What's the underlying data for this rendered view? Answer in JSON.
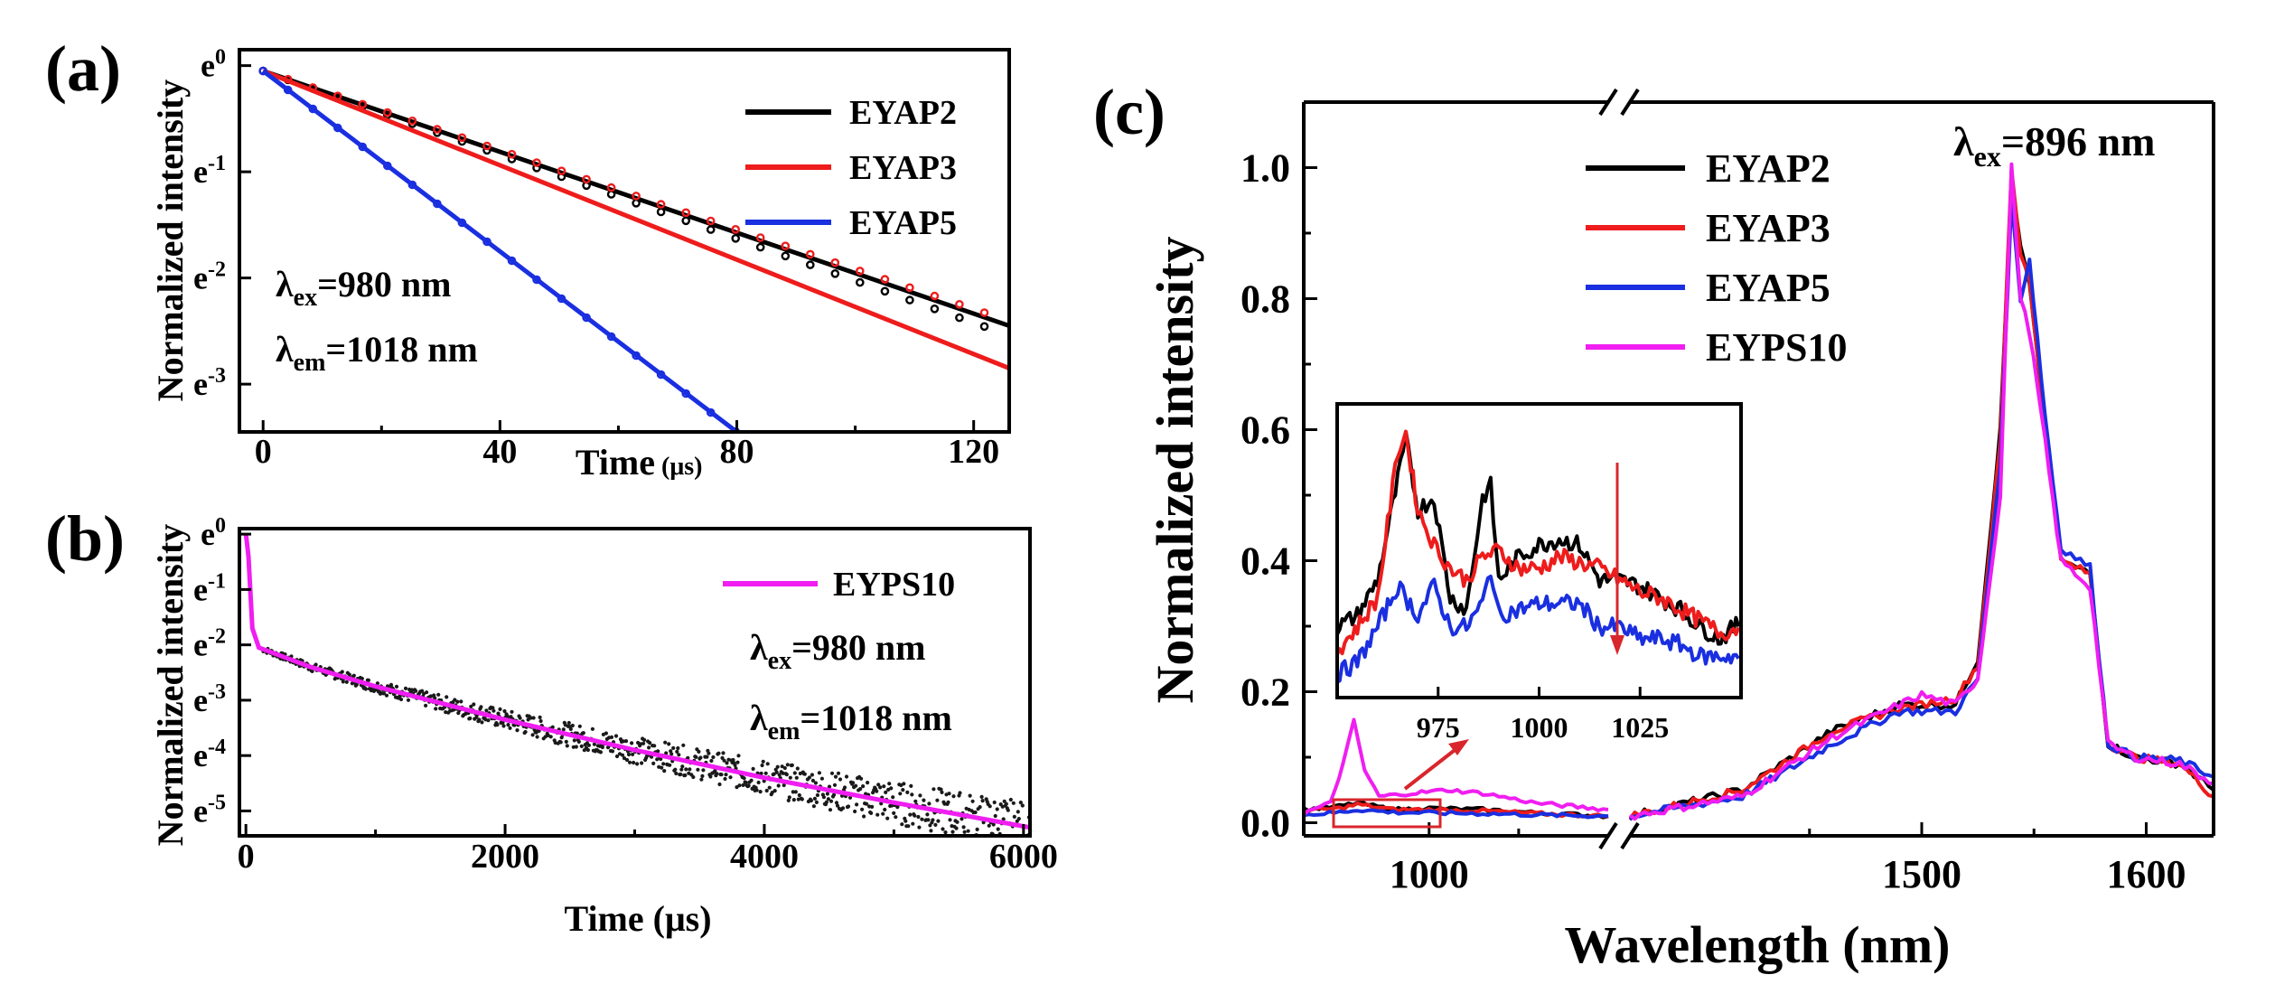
{
  "panels": {
    "a": "(a)",
    "b": "(b)",
    "c": "(c)"
  },
  "colors": {
    "EYAP2": "#000000",
    "EYAP3": "#ee1c1c",
    "EYAP5": "#1a2fe0",
    "EYPS10": "#f01ef0",
    "inset_box": "#d8262c"
  },
  "chart_data": [
    {
      "id": "a",
      "type": "line",
      "ylabel": "Normalized intensity",
      "xlabel": "Time",
      "xlabel_unit": "(μs)",
      "xlim": [
        -4,
        126
      ],
      "ylim": [
        -3.45,
        0.15
      ],
      "yscale": "log-e",
      "xticks": [
        0,
        40,
        80,
        120
      ],
      "ytick_exps": [
        "0",
        "-1",
        "-2",
        "-3"
      ],
      "legend": [
        "EYAP2",
        "EYAP3",
        "EYAP5"
      ],
      "annotations": [
        {
          "base": "λ",
          "sub": "ex",
          "rest": "=980 nm"
        },
        {
          "base": "λ",
          "sub": "em",
          "rest": "=1018 nm"
        }
      ],
      "series": [
        {
          "name": "EYAP2",
          "fit": [
            [
              0,
              -0.05
            ],
            [
              126,
              -2.45
            ]
          ],
          "data_tau": 50.6,
          "data_start": -0.05
        },
        {
          "name": "EYAP3",
          "fit": [
            [
              0,
              -0.05
            ],
            [
              126,
              -2.85
            ]
          ],
          "data_tau": 53.5,
          "data_start": -0.05
        },
        {
          "name": "EYAP5",
          "fit": [
            [
              0,
              -0.05
            ],
            [
              80,
              -3.45
            ]
          ],
          "data_tau": 23.5,
          "data_start": -0.05
        }
      ]
    },
    {
      "id": "b",
      "type": "line",
      "ylabel": "Normalized intensity",
      "xlabel": "Time (μs)",
      "xlim": [
        -50,
        6050
      ],
      "ylim": [
        -5.45,
        0.1
      ],
      "yscale": "log-e",
      "xticks": [
        0,
        2000,
        4000,
        6000
      ],
      "ytick_exps": [
        "0",
        "-1",
        "-2",
        "-3",
        "-4",
        "-5"
      ],
      "legend": [
        "EYPS10"
      ],
      "annotations": [
        {
          "base": "λ",
          "sub": "ex",
          "rest": "=980 nm"
        },
        {
          "base": "λ",
          "sub": "em",
          "rest": "=1018 nm"
        }
      ],
      "series": [
        {
          "name": "EYPS10",
          "fit": [
            [
              0,
              0
            ],
            [
              20,
              -0.4
            ],
            [
              50,
              -1.7
            ],
            [
              100,
              -2.05
            ],
            [
              500,
              -2.4
            ],
            [
              1000,
              -2.75
            ],
            [
              2000,
              -3.35
            ],
            [
              3000,
              -3.9
            ],
            [
              4000,
              -4.4
            ],
            [
              5000,
              -4.85
            ],
            [
              6050,
              -5.3
            ]
          ]
        }
      ]
    },
    {
      "id": "c",
      "type": "line",
      "ylabel": "Normalized intensity",
      "xlabel": "Wavelength (nm)",
      "ylim": [
        -0.02,
        1.1
      ],
      "x_break": true,
      "x_segments": [
        [
          930,
          1100
        ],
        [
          1370,
          1630
        ]
      ],
      "xticks": [
        1000,
        1500,
        1600
      ],
      "yticks": [
        "0.0",
        "0.2",
        "0.4",
        "0.6",
        "0.8",
        "1.0"
      ],
      "legend": [
        "EYAP2",
        "EYAP3",
        "EYAP5",
        "EYPS10"
      ],
      "annotation": {
        "base": "λ",
        "sub": "ex",
        "rest": "=896 nm"
      },
      "series": [
        {
          "name": "EYAP2",
          "seg1": [
            [
              930,
              0.02
            ],
            [
              950,
              0.025
            ],
            [
              960,
              0.03
            ],
            [
              980,
              0.02
            ],
            [
              1000,
              0.022
            ],
            [
              1030,
              0.02
            ],
            [
              1060,
              0.015
            ],
            [
              1100,
              0.01
            ]
          ],
          "seg2": [
            [
              1370,
              0.01
            ],
            [
              1420,
              0.05
            ],
            [
              1460,
              0.14
            ],
            [
              1490,
              0.18
            ],
            [
              1500,
              0.18
            ],
            [
              1515,
              0.18
            ],
            [
              1525,
              0.25
            ],
            [
              1535,
              0.6
            ],
            [
              1540,
              0.97
            ],
            [
              1544,
              0.88
            ],
            [
              1548,
              0.82
            ],
            [
              1555,
              0.6
            ],
            [
              1562,
              0.4
            ],
            [
              1575,
              0.38
            ],
            [
              1583,
              0.12
            ],
            [
              1595,
              0.1
            ],
            [
              1615,
              0.09
            ],
            [
              1630,
              0.05
            ]
          ]
        },
        {
          "name": "EYAP3",
          "seg1": [
            [
              930,
              0.018
            ],
            [
              950,
              0.022
            ],
            [
              960,
              0.028
            ],
            [
              980,
              0.02
            ],
            [
              1000,
              0.02
            ],
            [
              1030,
              0.018
            ],
            [
              1060,
              0.014
            ],
            [
              1100,
              0.01
            ]
          ],
          "seg2": [
            [
              1370,
              0.01
            ],
            [
              1420,
              0.05
            ],
            [
              1460,
              0.14
            ],
            [
              1490,
              0.175
            ],
            [
              1500,
              0.18
            ],
            [
              1515,
              0.19
            ],
            [
              1525,
              0.24
            ],
            [
              1535,
              0.58
            ],
            [
              1540,
              1.0
            ],
            [
              1544,
              0.87
            ],
            [
              1548,
              0.83
            ],
            [
              1555,
              0.6
            ],
            [
              1562,
              0.4
            ],
            [
              1575,
              0.38
            ],
            [
              1583,
              0.12
            ],
            [
              1595,
              0.1
            ],
            [
              1615,
              0.09
            ],
            [
              1630,
              0.04
            ]
          ]
        },
        {
          "name": "EYAP5",
          "seg1": [
            [
              930,
              0.012
            ],
            [
              950,
              0.016
            ],
            [
              960,
              0.02
            ],
            [
              980,
              0.016
            ],
            [
              1000,
              0.015
            ],
            [
              1030,
              0.014
            ],
            [
              1060,
              0.012
            ],
            [
              1100,
              0.01
            ]
          ],
          "seg2": [
            [
              1370,
              0.01
            ],
            [
              1420,
              0.04
            ],
            [
              1460,
              0.12
            ],
            [
              1490,
              0.17
            ],
            [
              1500,
              0.17
            ],
            [
              1515,
              0.17
            ],
            [
              1525,
              0.22
            ],
            [
              1535,
              0.55
            ],
            [
              1540,
              0.95
            ],
            [
              1544,
              0.8
            ],
            [
              1548,
              0.86
            ],
            [
              1555,
              0.62
            ],
            [
              1562,
              0.42
            ],
            [
              1575,
              0.39
            ],
            [
              1583,
              0.12
            ],
            [
              1595,
              0.1
            ],
            [
              1615,
              0.095
            ],
            [
              1630,
              0.07
            ]
          ]
        },
        {
          "name": "EYPS10",
          "seg1": [
            [
              930,
              0.015
            ],
            [
              945,
              0.03
            ],
            [
              952,
              0.09
            ],
            [
              958,
              0.155
            ],
            [
              964,
              0.08
            ],
            [
              972,
              0.04
            ],
            [
              990,
              0.045
            ],
            [
              1010,
              0.05
            ],
            [
              1030,
              0.045
            ],
            [
              1060,
              0.03
            ],
            [
              1100,
              0.02
            ]
          ],
          "seg2": [
            [
              1370,
              0.01
            ],
            [
              1420,
              0.04
            ],
            [
              1460,
              0.13
            ],
            [
              1490,
              0.18
            ],
            [
              1500,
              0.195
            ],
            [
              1515,
              0.18
            ],
            [
              1525,
              0.22
            ],
            [
              1535,
              0.5
            ],
            [
              1540,
              1.0
            ],
            [
              1544,
              0.8
            ],
            [
              1548,
              0.75
            ],
            [
              1555,
              0.58
            ],
            [
              1562,
              0.4
            ],
            [
              1575,
              0.36
            ],
            [
              1583,
              0.12
            ],
            [
              1595,
              0.1
            ],
            [
              1615,
              0.09
            ],
            [
              1630,
              0.06
            ]
          ]
        }
      ],
      "inset": {
        "xlim": [
          950,
          1050
        ],
        "xticks": [
          975,
          1000,
          1025
        ],
        "series": [
          {
            "name": "EYAP2",
            "data": [
              [
                950,
                0.3
              ],
              [
                955,
                0.32
              ],
              [
                960,
                0.38
              ],
              [
                965,
                0.55
              ],
              [
                967,
                0.62
              ],
              [
                970,
                0.5
              ],
              [
                974,
                0.52
              ],
              [
                978,
                0.35
              ],
              [
                982,
                0.33
              ],
              [
                986,
                0.52
              ],
              [
                988,
                0.54
              ],
              [
                990,
                0.38
              ],
              [
                995,
                0.42
              ],
              [
                1000,
                0.44
              ],
              [
                1005,
                0.45
              ],
              [
                1010,
                0.44
              ],
              [
                1015,
                0.38
              ],
              [
                1020,
                0.38
              ],
              [
                1025,
                0.37
              ],
              [
                1030,
                0.35
              ],
              [
                1035,
                0.33
              ],
              [
                1040,
                0.3
              ],
              [
                1045,
                0.28
              ],
              [
                1050,
                0.31
              ]
            ]
          },
          {
            "name": "EYAP3",
            "data": [
              [
                950,
                0.26
              ],
              [
                955,
                0.3
              ],
              [
                960,
                0.35
              ],
              [
                965,
                0.6
              ],
              [
                967,
                0.63
              ],
              [
                970,
                0.5
              ],
              [
                974,
                0.44
              ],
              [
                978,
                0.4
              ],
              [
                982,
                0.38
              ],
              [
                986,
                0.42
              ],
              [
                990,
                0.43
              ],
              [
                995,
                0.4
              ],
              [
                1000,
                0.4
              ],
              [
                1005,
                0.42
              ],
              [
                1010,
                0.41
              ],
              [
                1015,
                0.4
              ],
              [
                1020,
                0.38
              ],
              [
                1025,
                0.36
              ],
              [
                1030,
                0.35
              ],
              [
                1035,
                0.33
              ],
              [
                1040,
                0.31
              ],
              [
                1045,
                0.29
              ],
              [
                1050,
                0.3
              ]
            ]
          },
          {
            "name": "EYAP5",
            "data": [
              [
                950,
                0.22
              ],
              [
                955,
                0.24
              ],
              [
                960,
                0.3
              ],
              [
                965,
                0.37
              ],
              [
                970,
                0.32
              ],
              [
                974,
                0.37
              ],
              [
                978,
                0.3
              ],
              [
                982,
                0.3
              ],
              [
                986,
                0.34
              ],
              [
                988,
                0.4
              ],
              [
                990,
                0.32
              ],
              [
                995,
                0.33
              ],
              [
                1000,
                0.34
              ],
              [
                1005,
                0.34
              ],
              [
                1010,
                0.34
              ],
              [
                1015,
                0.3
              ],
              [
                1020,
                0.3
              ],
              [
                1025,
                0.28
              ],
              [
                1030,
                0.28
              ],
              [
                1035,
                0.27
              ],
              [
                1040,
                0.25
              ],
              [
                1045,
                0.25
              ],
              [
                1050,
                0.25
              ]
            ]
          }
        ]
      }
    }
  ]
}
